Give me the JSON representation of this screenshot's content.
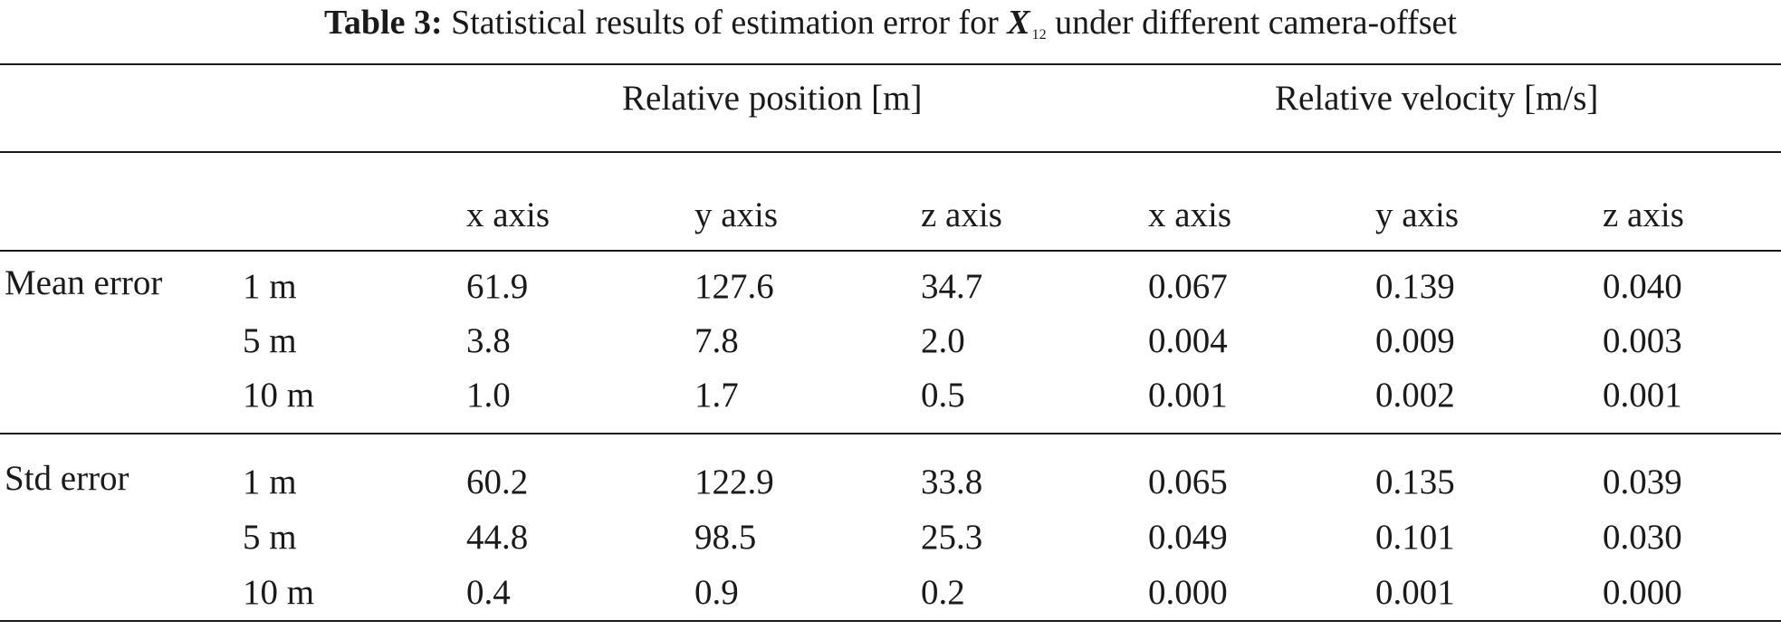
{
  "caption": {
    "label": "Table 3:",
    "text_before": "Statistical results of estimation error for",
    "symbol": "X",
    "subscript": "12",
    "text_after": "under different camera-offset"
  },
  "groups": {
    "position": "Relative position [m]",
    "velocity": "Relative velocity [m/s]"
  },
  "columns": [
    "x axis",
    "y axis",
    "z axis",
    "x axis",
    "y axis",
    "z axis"
  ],
  "sections": [
    {
      "label": "Mean error",
      "rows": [
        {
          "offset": "1 m",
          "values": [
            "61.9",
            "127.6",
            "34.7",
            "0.067",
            "0.139",
            "0.040"
          ]
        },
        {
          "offset": "5 m",
          "values": [
            "3.8",
            "7.8",
            "2.0",
            "0.004",
            "0.009",
            "0.003"
          ]
        },
        {
          "offset": "10 m",
          "values": [
            "1.0",
            "1.7",
            "0.5",
            "0.001",
            "0.002",
            "0.001"
          ]
        }
      ]
    },
    {
      "label": "Std error",
      "rows": [
        {
          "offset": "1 m",
          "values": [
            "60.2",
            "122.9",
            "33.8",
            "0.065",
            "0.135",
            "0.039"
          ]
        },
        {
          "offset": "5 m",
          "values": [
            "44.8",
            "98.5",
            "25.3",
            "0.049",
            "0.101",
            "0.030"
          ]
        },
        {
          "offset": "10 m",
          "values": [
            "0.4",
            "0.9",
            "0.2",
            "0.000",
            "0.001",
            "0.000"
          ]
        }
      ]
    }
  ]
}
